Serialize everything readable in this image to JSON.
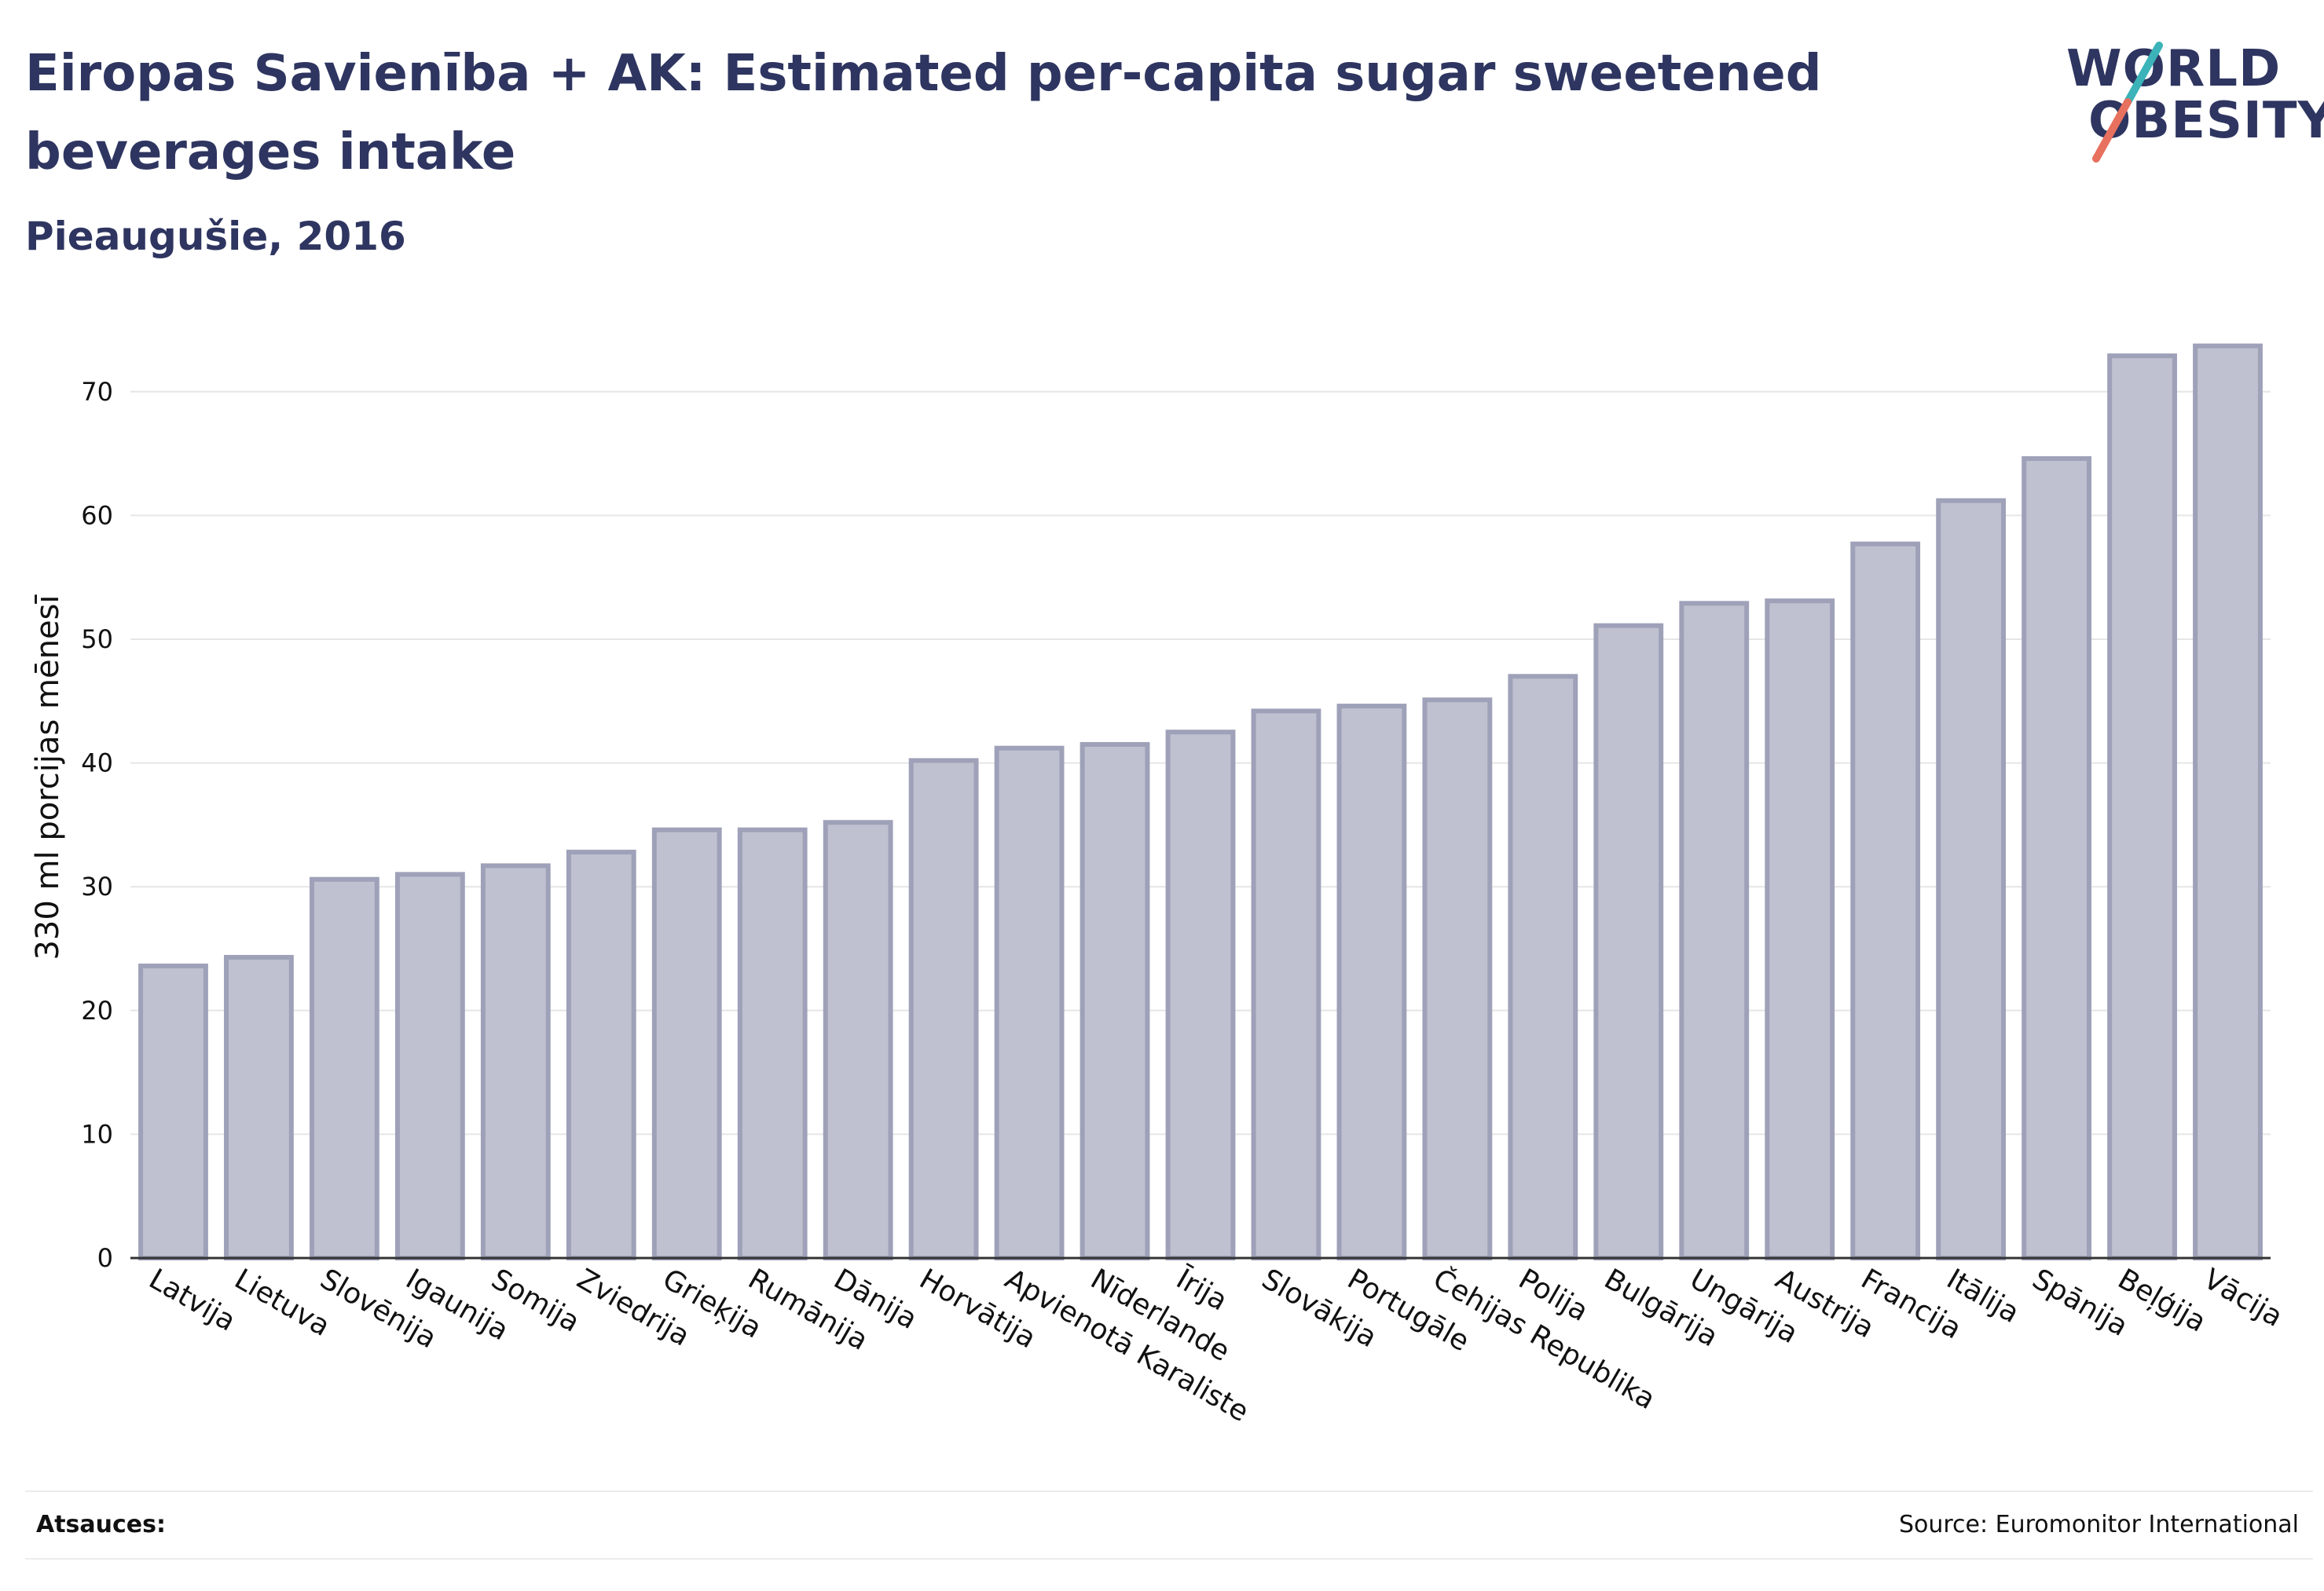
{
  "header": {
    "title": "Eiropas Savienība + AK: Estimated per-capita sugar sweetened beverages intake",
    "subtitle": "Pieaugušie, 2016"
  },
  "logo": {
    "line1": "WORLD",
    "line2": "OBESITY",
    "accent_colors": [
      "#3bb3b8",
      "#e8705e"
    ]
  },
  "footer": {
    "references_label": "Atsauces:",
    "source": "Source: Euromonitor International"
  },
  "colors": {
    "bar_fill": "#bfc1d0",
    "bar_stroke": "#9ea1b8",
    "text": "#2e3560",
    "grid": "#e6e6e6"
  },
  "chart_data": {
    "type": "bar",
    "ylabel": "330 ml porcijas mēnesī",
    "xlabel": "",
    "ylim": [
      0,
      75
    ],
    "yticks": [
      0,
      10,
      20,
      30,
      40,
      50,
      60,
      70
    ],
    "grid": true,
    "categories": [
      "Latvija",
      "Lietuva",
      "Slovēnija",
      "Igaunija",
      "Somija",
      "Zviedrija",
      "Grieķija",
      "Rumānija",
      "Dānija",
      "Horvātija",
      "Apvienotā Karaliste",
      "Nīderlande",
      "Īrija",
      "Slovākija",
      "Portugāle",
      "Čehijas Republika",
      "Polija",
      "Bulgārija",
      "Ungārija",
      "Austrija",
      "Francija",
      "Itālija",
      "Spānija",
      "Beļģija",
      "Vācija"
    ],
    "values": [
      23.6,
      24.3,
      30.6,
      31.0,
      31.7,
      32.8,
      34.6,
      34.6,
      35.2,
      40.2,
      41.2,
      41.5,
      42.5,
      44.2,
      44.6,
      45.1,
      47.0,
      51.1,
      52.9,
      53.1,
      57.7,
      61.2,
      64.6,
      72.9,
      73.7
    ]
  }
}
